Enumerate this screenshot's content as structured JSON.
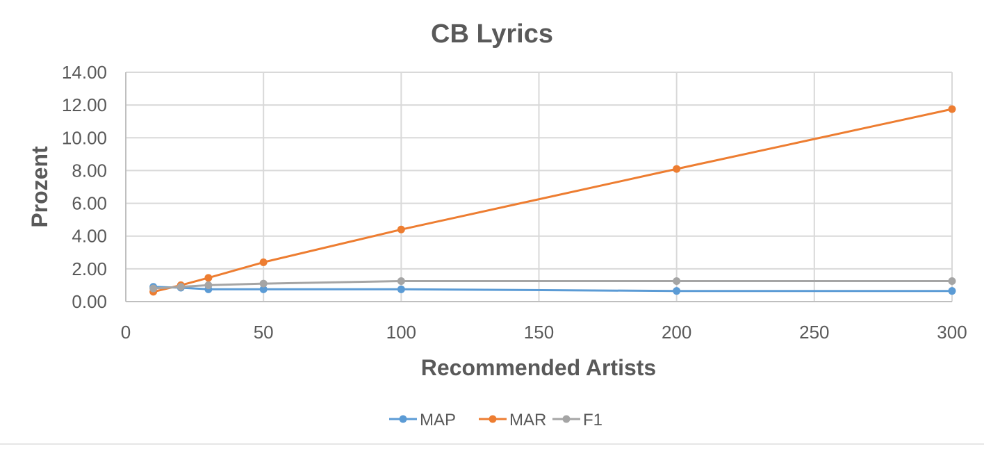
{
  "chart_data": {
    "type": "line",
    "title": "CB Lyrics",
    "xlabel": "Recommended Artists",
    "ylabel": "Prozent",
    "xlim": [
      0,
      300
    ],
    "ylim": [
      0,
      14
    ],
    "x_ticks": [
      0,
      50,
      100,
      150,
      200,
      250,
      300
    ],
    "x_tick_labels": [
      "0",
      "50",
      "100",
      "150",
      "200",
      "250",
      "300"
    ],
    "y_ticks": [
      0,
      2,
      4,
      6,
      8,
      10,
      12,
      14
    ],
    "y_tick_labels": [
      "0.00",
      "2.00",
      "4.00",
      "6.00",
      "8.00",
      "10.00",
      "12.00",
      "14.00"
    ],
    "grid": true,
    "legend_position": "bottom",
    "x": [
      10,
      20,
      30,
      50,
      100,
      200,
      300
    ],
    "series": [
      {
        "name": "MAP",
        "color": "#5B9BD5",
        "values": [
          0.9,
          0.85,
          0.75,
          0.75,
          0.75,
          0.65,
          0.65
        ]
      },
      {
        "name": "MAR",
        "color": "#ED7D31",
        "values": [
          0.6,
          1.0,
          1.45,
          2.4,
          4.4,
          8.1,
          11.75
        ]
      },
      {
        "name": "F1",
        "color": "#A5A5A5",
        "values": [
          0.8,
          0.9,
          1.0,
          1.1,
          1.25,
          1.25,
          1.25
        ]
      }
    ]
  }
}
